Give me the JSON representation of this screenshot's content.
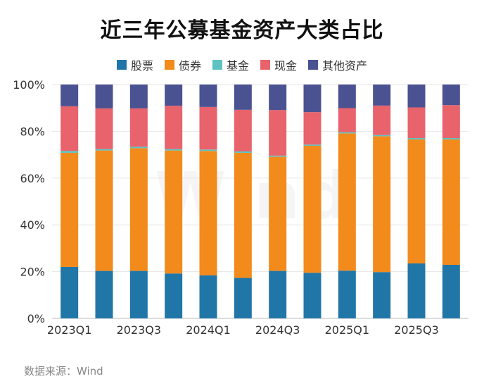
{
  "chart_data": {
    "type": "bar",
    "stacked": true,
    "title": "近三年公募基金资产大类占比",
    "categories": [
      "2023Q1",
      "2023Q2",
      "2023Q3",
      "2023Q4",
      "2024Q1",
      "2024Q2",
      "2024Q3",
      "2024Q4",
      "2025Q1",
      "2025Q2",
      "2025Q3",
      "2025Q4"
    ],
    "x_tick_labels": [
      "2023Q1",
      "2023Q3",
      "2024Q1",
      "2024Q3",
      "2025Q1",
      "2025Q3"
    ],
    "y_tick_labels": [
      "0%",
      "20%",
      "40%",
      "60%",
      "80%",
      "100%"
    ],
    "ylim": [
      0,
      100
    ],
    "legend_position": "top",
    "series": [
      {
        "name": "股票",
        "color": "#2176a8",
        "values": [
          22.0,
          20.3,
          20.3,
          19.2,
          18.4,
          17.3,
          20.3,
          19.5,
          20.4,
          19.8,
          23.5,
          22.9
        ]
      },
      {
        "name": "债券",
        "color": "#f28a1c",
        "values": [
          48.8,
          51.5,
          52.5,
          52.6,
          53.2,
          53.5,
          48.8,
          54.3,
          58.7,
          58.1,
          53.0,
          53.6
        ]
      },
      {
        "name": "基金",
        "color": "#5ec2c2",
        "values": [
          0.8,
          0.6,
          0.6,
          0.6,
          0.6,
          0.6,
          0.5,
          0.5,
          0.5,
          0.5,
          0.6,
          0.6
        ]
      },
      {
        "name": "现金",
        "color": "#e8636b",
        "values": [
          19.1,
          17.4,
          16.4,
          18.5,
          18.2,
          17.8,
          19.5,
          13.9,
          10.3,
          12.6,
          13.1,
          14.1
        ]
      },
      {
        "name": "其他资产",
        "color": "#4a5292",
        "values": [
          9.3,
          10.2,
          10.2,
          9.1,
          9.6,
          10.8,
          10.9,
          11.8,
          10.1,
          9.0,
          9.8,
          8.8
        ]
      }
    ]
  },
  "source_text": "数据来源：Wind",
  "watermark_text": "Wind"
}
